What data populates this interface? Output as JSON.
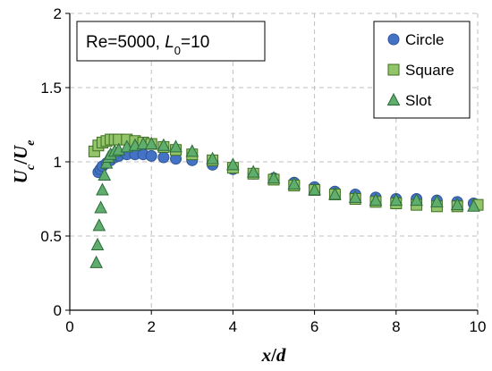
{
  "chart_data": {
    "type": "scatter",
    "annotation": {
      "prefix": "Re=5000, ",
      "var": "L",
      "sub": "0",
      "suffix": "=10"
    },
    "xlabel": {
      "main": "x",
      "sep": "/",
      "tail": "d"
    },
    "ylabel": {
      "num": "U",
      "num_sub": "c",
      "sep": "/",
      "den": "U",
      "den_sub": "e"
    },
    "xlim": [
      0,
      10
    ],
    "ylim": [
      0,
      2
    ],
    "xticks": [
      0,
      2,
      4,
      6,
      8,
      10
    ],
    "yticks": [
      0,
      0.5,
      1,
      1.5,
      2
    ],
    "xtick_labels": [
      "0",
      "2",
      "4",
      "6",
      "8",
      "10"
    ],
    "ytick_labels": [
      "0",
      "0.5",
      "1",
      "1.5",
      "2"
    ],
    "grid": true,
    "legend_position": "top-right",
    "series": [
      {
        "name": "Circle",
        "marker": "circle",
        "color": "#4472C4",
        "edge": "#2F5597",
        "points": [
          [
            0.7,
            0.93
          ],
          [
            0.75,
            0.95
          ],
          [
            0.8,
            0.97
          ],
          [
            0.9,
            0.99
          ],
          [
            1.0,
            1.01
          ],
          [
            1.1,
            1.03
          ],
          [
            1.2,
            1.04
          ],
          [
            1.4,
            1.05
          ],
          [
            1.6,
            1.05
          ],
          [
            1.8,
            1.05
          ],
          [
            2.0,
            1.04
          ],
          [
            2.3,
            1.03
          ],
          [
            2.6,
            1.02
          ],
          [
            3.0,
            1.01
          ],
          [
            3.5,
            0.98
          ],
          [
            4.0,
            0.95
          ],
          [
            4.5,
            0.92
          ],
          [
            5.0,
            0.89
          ],
          [
            5.5,
            0.86
          ],
          [
            6.0,
            0.83
          ],
          [
            6.5,
            0.8
          ],
          [
            7.0,
            0.78
          ],
          [
            7.5,
            0.76
          ],
          [
            8.0,
            0.75
          ],
          [
            8.5,
            0.75
          ],
          [
            9.0,
            0.74
          ],
          [
            9.5,
            0.73
          ],
          [
            9.9,
            0.72
          ]
        ]
      },
      {
        "name": "Square",
        "marker": "square",
        "color": "#92C46A",
        "edge": "#3F6F22",
        "points": [
          [
            0.6,
            1.07
          ],
          [
            0.7,
            1.11
          ],
          [
            0.8,
            1.13
          ],
          [
            0.9,
            1.14
          ],
          [
            1.0,
            1.15
          ],
          [
            1.1,
            1.15
          ],
          [
            1.2,
            1.15
          ],
          [
            1.4,
            1.15
          ],
          [
            1.6,
            1.14
          ],
          [
            1.8,
            1.13
          ],
          [
            2.0,
            1.12
          ],
          [
            2.3,
            1.1
          ],
          [
            2.6,
            1.08
          ],
          [
            3.0,
            1.05
          ],
          [
            3.5,
            1.01
          ],
          [
            4.0,
            0.96
          ],
          [
            4.5,
            0.92
          ],
          [
            5.0,
            0.88
          ],
          [
            5.5,
            0.84
          ],
          [
            6.0,
            0.81
          ],
          [
            6.5,
            0.78
          ],
          [
            7.0,
            0.75
          ],
          [
            7.5,
            0.73
          ],
          [
            8.0,
            0.72
          ],
          [
            8.5,
            0.71
          ],
          [
            9.0,
            0.7
          ],
          [
            9.5,
            0.7
          ],
          [
            10.0,
            0.71
          ]
        ]
      },
      {
        "name": "Slot",
        "marker": "triangle",
        "color": "#5FAE6E",
        "edge": "#2E6B3A",
        "points": [
          [
            0.65,
            0.32
          ],
          [
            0.68,
            0.44
          ],
          [
            0.72,
            0.57
          ],
          [
            0.76,
            0.69
          ],
          [
            0.8,
            0.81
          ],
          [
            0.85,
            0.91
          ],
          [
            0.9,
            0.99
          ],
          [
            0.95,
            1.03
          ],
          [
            1.0,
            1.05
          ],
          [
            1.1,
            1.07
          ],
          [
            1.2,
            1.08
          ],
          [
            1.4,
            1.1
          ],
          [
            1.6,
            1.11
          ],
          [
            1.8,
            1.12
          ],
          [
            2.0,
            1.12
          ],
          [
            2.3,
            1.11
          ],
          [
            2.6,
            1.1
          ],
          [
            3.0,
            1.07
          ],
          [
            3.5,
            1.02
          ],
          [
            4.0,
            0.98
          ],
          [
            4.5,
            0.93
          ],
          [
            5.0,
            0.89
          ],
          [
            5.5,
            0.85
          ],
          [
            6.0,
            0.81
          ],
          [
            6.5,
            0.78
          ],
          [
            7.0,
            0.76
          ],
          [
            7.5,
            0.74
          ],
          [
            8.0,
            0.74
          ],
          [
            8.5,
            0.74
          ],
          [
            9.0,
            0.73
          ],
          [
            9.5,
            0.71
          ],
          [
            9.9,
            0.7
          ]
        ]
      }
    ]
  }
}
